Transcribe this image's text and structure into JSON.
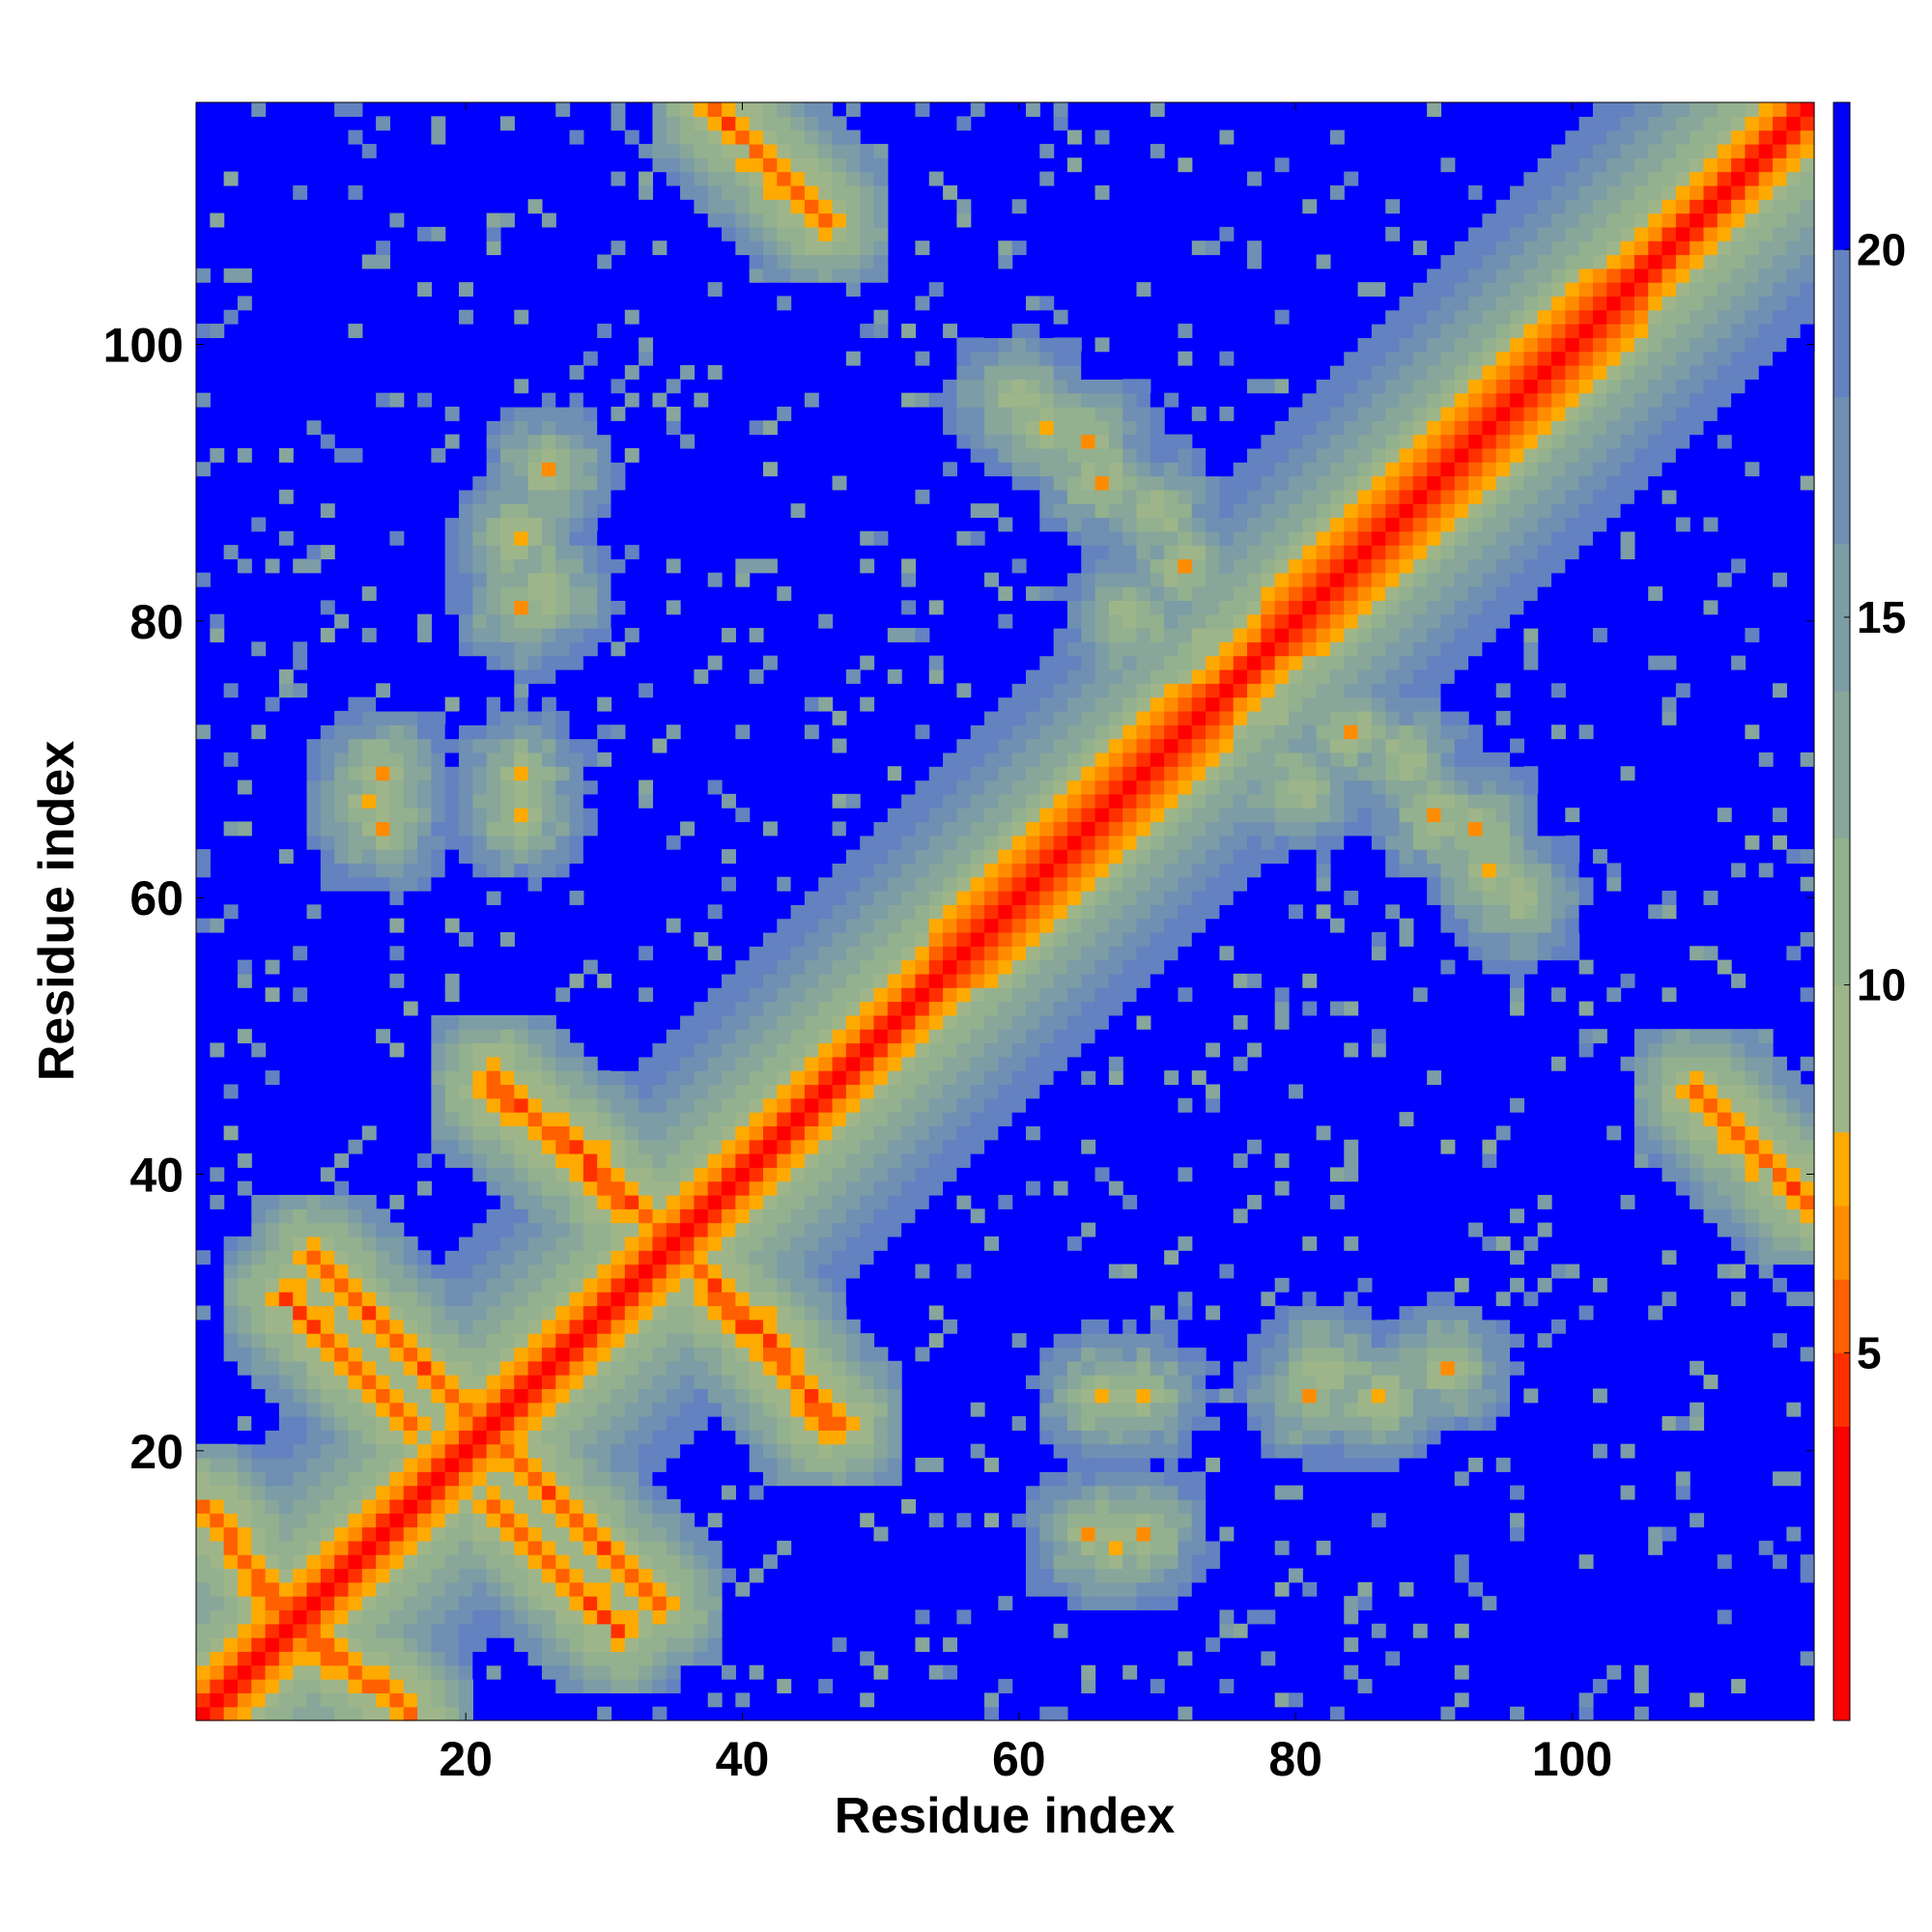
{
  "chart_data": {
    "type": "heatmap",
    "title": "",
    "xlabel": "Residue index",
    "ylabel": "Residue index",
    "n_residues": 117,
    "xlim": [
      0.5,
      117.5
    ],
    "ylim": [
      0.5,
      117.5
    ],
    "x_ticks": [
      20,
      40,
      60,
      80,
      100
    ],
    "y_ticks": [
      20,
      40,
      60,
      80,
      100
    ],
    "colorbar": {
      "ticks": [
        5,
        10,
        15,
        20
      ],
      "range": [
        0,
        22
      ],
      "levels": [
        {
          "upto": 4,
          "color": "#ff0000"
        },
        {
          "upto": 5,
          "color": "#ff3000"
        },
        {
          "upto": 6,
          "color": "#ff6000"
        },
        {
          "upto": 7,
          "color": "#ff8c00"
        },
        {
          "upto": 8,
          "color": "#ffaa00"
        },
        {
          "upto": 10,
          "color": "#9eb58a"
        },
        {
          "upto": 12,
          "color": "#93b08f"
        },
        {
          "upto": 14,
          "color": "#88a69a"
        },
        {
          "upto": 16,
          "color": "#7c9ca6"
        },
        {
          "upto": 18,
          "color": "#6f8fb3"
        },
        {
          "upto": 20,
          "color": "#6382bf"
        },
        {
          "upto": 22,
          "color": "#0000ff"
        }
      ]
    },
    "grid": false,
    "colors": {
      "far": "#0000ff",
      "near": "#ff0000"
    },
    "features": {
      "diagonal": {
        "from": 1,
        "to": 117
      },
      "helices": [
        {
          "start": 54,
          "end": 75
        },
        {
          "start": 78,
          "end": 105
        }
      ],
      "strand_pairs": [
        {
          "type": "antiparallel",
          "a": [
            1,
            10
          ],
          "b": [
            5,
            16
          ]
        },
        {
          "type": "antiparallel",
          "a": [
            9,
            22
          ],
          "b": [
            21,
            34
          ]
        },
        {
          "type": "antiparallel",
          "a": [
            22,
            31
          ],
          "b": [
            7,
            16
          ]
        },
        {
          "type": "antiparallel",
          "a": [
            22,
            31
          ],
          "b": [
            39,
            47
          ]
        },
        {
          "type": "antiparallel",
          "a": [
            35,
            40
          ],
          "b": [
            29,
            35
          ]
        },
        {
          "type": "antiparallel",
          "a": [
            40,
            46
          ],
          "b": [
            22,
            30
          ]
        },
        {
          "type": "antiparallel",
          "a": [
            38,
            46
          ],
          "b": [
            109,
            117
          ]
        }
      ],
      "tertiary_contacts": [
        [
          65,
          93
        ],
        [
          70,
          88
        ],
        [
          72,
          84
        ],
        [
          66,
          90
        ],
        [
          62,
          94
        ],
        [
          60,
          96
        ],
        [
          68,
          80
        ],
        [
          74,
          78
        ],
        [
          24,
          86
        ],
        [
          26,
          82
        ],
        [
          24,
          66
        ],
        [
          13,
          67
        ],
        [
          24,
          69
        ],
        [
          86,
          24
        ],
        [
          81,
          24
        ],
        [
          91,
          26
        ],
        [
          69,
          14
        ],
        [
          65,
          14
        ]
      ]
    }
  }
}
